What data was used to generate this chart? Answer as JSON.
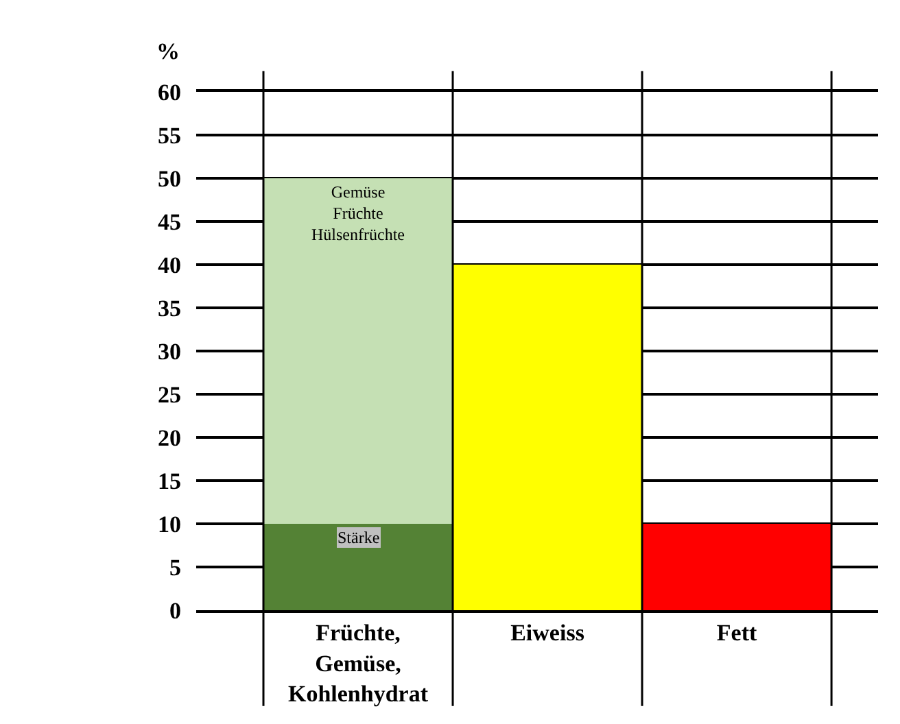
{
  "chart_data": {
    "type": "bar",
    "ylabel": "%",
    "categories": [
      "Früchte, Gemüse, Kohlenhydrat",
      "Eiweiss",
      "Fett"
    ],
    "stacked": true,
    "series": [
      {
        "name": "Stärke",
        "color": "#548235",
        "values": [
          10,
          null,
          null
        ]
      },
      {
        "name": "Gemüse Früchte Hülsenfrüchte",
        "color": "#c5e0b4",
        "values": [
          40,
          null,
          null
        ]
      },
      {
        "color": "#ffff00",
        "values": [
          null,
          40,
          null
        ]
      },
      {
        "color": "#ff0000",
        "values": [
          null,
          null,
          10
        ]
      }
    ],
    "ylim": [
      0,
      60
    ],
    "yticks": [
      0,
      5,
      10,
      15,
      20,
      25,
      30,
      35,
      40,
      45,
      50,
      55,
      60
    ],
    "grid": true
  }
}
